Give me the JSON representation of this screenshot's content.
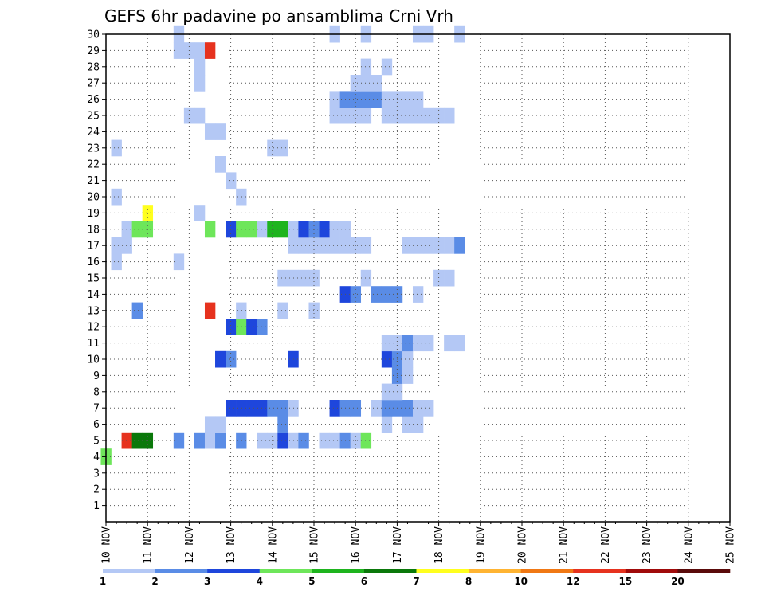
{
  "chart_data": {
    "type": "heatmap",
    "title": "GEFS 6hr padavine po ansamblima Crni Vrh",
    "x_tick_labels": [
      "10 NOV",
      "11 NOV",
      "12 NOV",
      "13 NOV",
      "14 NOV",
      "15 NOV",
      "16 NOV",
      "17 NOV",
      "18 NOV",
      "19 NOV",
      "20 NOV",
      "21 NOV",
      "22 NOV",
      "23 NOV",
      "24 NOV",
      "25 NOV"
    ],
    "x_step_hours": 6,
    "y_tick_labels": [
      "1",
      "2",
      "3",
      "4",
      "5",
      "6",
      "7",
      "8",
      "9",
      "10",
      "11",
      "12",
      "13",
      "14",
      "15",
      "16",
      "17",
      "18",
      "19",
      "20",
      "21",
      "22",
      "23",
      "24",
      "25",
      "26",
      "27",
      "28",
      "29",
      "30"
    ],
    "y_range": [
      0,
      30
    ],
    "grid": true,
    "legend": {
      "placement": "bottom",
      "colors": [
        "#b4c8f5",
        "#5a8ce6",
        "#1e46dc",
        "#6ee65a",
        "#1eb41e",
        "#0a780a",
        "#ffff1e",
        "#ffb432",
        "#f07814",
        "#e6321e",
        "#a00a0a",
        "#5a0a0a"
      ],
      "labels": [
        "1",
        "2",
        "3",
        "4",
        "5",
        "6",
        "7",
        "8",
        "10",
        "12",
        "15",
        "20"
      ]
    },
    "cells": [
      [
        4,
        0,
        4
      ],
      [
        5,
        2,
        10
      ],
      [
        5,
        3,
        6
      ],
      [
        5,
        4,
        6
      ],
      [
        5,
        7,
        2
      ],
      [
        5,
        9,
        2
      ],
      [
        5,
        10,
        1
      ],
      [
        5,
        11,
        2
      ],
      [
        5,
        13,
        2
      ],
      [
        5,
        15,
        1
      ],
      [
        5,
        16,
        1
      ],
      [
        5,
        17,
        3
      ],
      [
        5,
        18,
        1
      ],
      [
        5,
        19,
        2
      ],
      [
        5,
        21,
        1
      ],
      [
        5,
        22,
        1
      ],
      [
        5,
        23,
        2
      ],
      [
        5,
        24,
        1
      ],
      [
        5,
        25,
        4
      ],
      [
        6,
        10,
        1
      ],
      [
        6,
        11,
        1
      ],
      [
        6,
        17,
        2
      ],
      [
        6,
        27,
        1
      ],
      [
        6,
        29,
        1
      ],
      [
        6,
        30,
        1
      ],
      [
        7,
        12,
        3
      ],
      [
        7,
        13,
        3
      ],
      [
        7,
        14,
        3
      ],
      [
        7,
        15,
        3
      ],
      [
        7,
        16,
        2
      ],
      [
        7,
        17,
        2
      ],
      [
        7,
        18,
        1
      ],
      [
        7,
        22,
        3
      ],
      [
        7,
        23,
        2
      ],
      [
        7,
        24,
        2
      ],
      [
        7,
        26,
        1
      ],
      [
        7,
        27,
        2
      ],
      [
        7,
        28,
        2
      ],
      [
        7,
        29,
        2
      ],
      [
        7,
        30,
        1
      ],
      [
        7,
        31,
        1
      ],
      [
        8,
        27,
        1
      ],
      [
        8,
        28,
        1
      ],
      [
        9,
        28,
        2
      ],
      [
        9,
        29,
        1
      ],
      [
        10,
        11,
        3
      ],
      [
        10,
        12,
        2
      ],
      [
        10,
        18,
        3
      ],
      [
        10,
        27,
        3
      ],
      [
        10,
        28,
        2
      ],
      [
        10,
        29,
        1
      ],
      [
        11,
        27,
        1
      ],
      [
        11,
        28,
        1
      ],
      [
        11,
        29,
        2
      ],
      [
        11,
        30,
        1
      ],
      [
        11,
        31,
        1
      ],
      [
        11,
        33,
        1
      ],
      [
        11,
        34,
        1
      ],
      [
        12,
        12,
        3
      ],
      [
        12,
        13,
        4
      ],
      [
        12,
        14,
        3
      ],
      [
        12,
        15,
        2
      ],
      [
        13,
        3,
        2
      ],
      [
        13,
        10,
        10
      ],
      [
        13,
        13,
        1
      ],
      [
        13,
        17,
        1
      ],
      [
        13,
        20,
        1
      ],
      [
        14,
        23,
        3
      ],
      [
        14,
        24,
        2
      ],
      [
        14,
        26,
        2
      ],
      [
        14,
        27,
        2
      ],
      [
        14,
        28,
        2
      ],
      [
        14,
        30,
        1
      ],
      [
        15,
        17,
        1
      ],
      [
        15,
        18,
        1
      ],
      [
        15,
        19,
        1
      ],
      [
        15,
        20,
        1
      ],
      [
        15,
        25,
        1
      ],
      [
        15,
        32,
        1
      ],
      [
        15,
        33,
        1
      ],
      [
        16,
        1,
        1
      ],
      [
        16,
        7,
        1
      ],
      [
        17,
        1,
        1
      ],
      [
        17,
        2,
        1
      ],
      [
        17,
        18,
        1
      ],
      [
        17,
        19,
        1
      ],
      [
        17,
        20,
        1
      ],
      [
        17,
        21,
        1
      ],
      [
        17,
        22,
        1
      ],
      [
        17,
        23,
        1
      ],
      [
        17,
        24,
        1
      ],
      [
        17,
        25,
        1
      ],
      [
        17,
        29,
        1
      ],
      [
        17,
        30,
        1
      ],
      [
        17,
        31,
        1
      ],
      [
        17,
        32,
        1
      ],
      [
        17,
        33,
        1
      ],
      [
        17,
        34,
        2
      ],
      [
        18,
        2,
        1
      ],
      [
        18,
        3,
        4
      ],
      [
        18,
        4,
        4
      ],
      [
        18,
        10,
        4
      ],
      [
        18,
        12,
        3
      ],
      [
        18,
        13,
        4
      ],
      [
        18,
        14,
        4
      ],
      [
        18,
        15,
        1
      ],
      [
        18,
        16,
        5
      ],
      [
        18,
        17,
        5
      ],
      [
        18,
        18,
        1
      ],
      [
        18,
        19,
        3
      ],
      [
        18,
        20,
        2
      ],
      [
        18,
        21,
        3
      ],
      [
        18,
        22,
        1
      ],
      [
        18,
        23,
        1
      ],
      [
        19,
        4,
        7
      ],
      [
        19,
        9,
        1
      ],
      [
        20,
        1,
        1
      ],
      [
        20,
        13,
        1
      ],
      [
        21,
        12,
        1
      ],
      [
        22,
        11,
        1
      ],
      [
        23,
        1,
        1
      ],
      [
        23,
        16,
        1
      ],
      [
        23,
        17,
        1
      ],
      [
        24,
        10,
        1
      ],
      [
        24,
        11,
        1
      ],
      [
        25,
        8,
        1
      ],
      [
        25,
        9,
        1
      ],
      [
        25,
        22,
        1
      ],
      [
        25,
        23,
        1
      ],
      [
        25,
        24,
        1
      ],
      [
        25,
        25,
        1
      ],
      [
        25,
        27,
        1
      ],
      [
        25,
        28,
        1
      ],
      [
        25,
        29,
        1
      ],
      [
        25,
        30,
        1
      ],
      [
        25,
        31,
        1
      ],
      [
        25,
        32,
        1
      ],
      [
        25,
        33,
        1
      ],
      [
        26,
        22,
        1
      ],
      [
        26,
        23,
        2
      ],
      [
        26,
        24,
        2
      ],
      [
        26,
        25,
        2
      ],
      [
        26,
        26,
        2
      ],
      [
        26,
        27,
        1
      ],
      [
        26,
        28,
        1
      ],
      [
        26,
        29,
        1
      ],
      [
        26,
        30,
        1
      ],
      [
        27,
        9,
        1
      ],
      [
        27,
        24,
        1
      ],
      [
        27,
        25,
        1
      ],
      [
        27,
        26,
        1
      ],
      [
        28,
        9,
        1
      ],
      [
        28,
        25,
        1
      ],
      [
        28,
        27,
        1
      ],
      [
        29,
        7,
        1
      ],
      [
        29,
        8,
        1
      ],
      [
        29,
        9,
        1
      ],
      [
        29,
        10,
        10
      ],
      [
        30,
        7,
        1
      ],
      [
        30,
        22,
        1
      ],
      [
        30,
        25,
        1
      ],
      [
        30,
        30,
        1
      ],
      [
        30,
        31,
        1
      ],
      [
        30,
        34,
        1
      ]
    ]
  }
}
